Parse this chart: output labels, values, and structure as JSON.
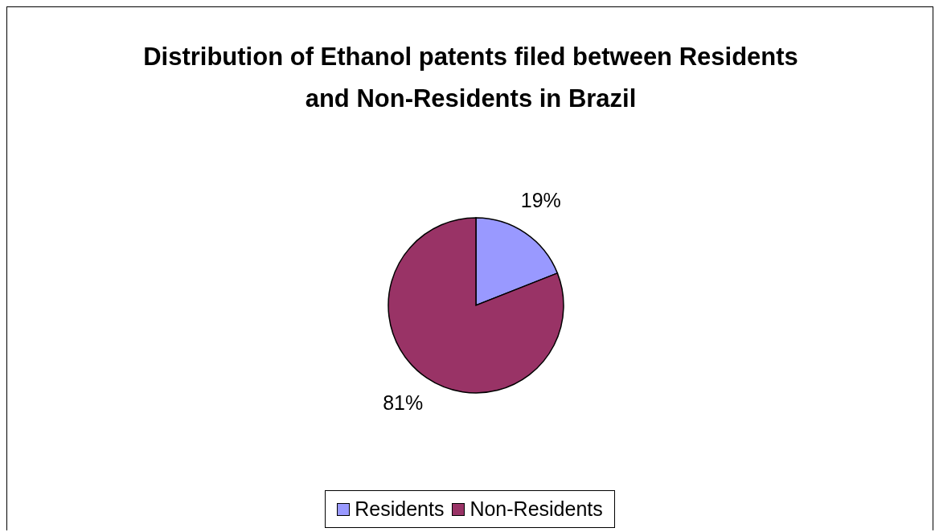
{
  "chart_data": {
    "type": "pie",
    "title": "Distribution of Ethanol patents filed between Residents and Non-Residents in Brazil",
    "categories": [
      "Residents",
      "Non-Residents"
    ],
    "values": [
      19,
      81
    ],
    "colors": [
      "#9999ff",
      "#993366"
    ],
    "value_labels": [
      "19%",
      "81%"
    ],
    "legend": "bottom"
  }
}
